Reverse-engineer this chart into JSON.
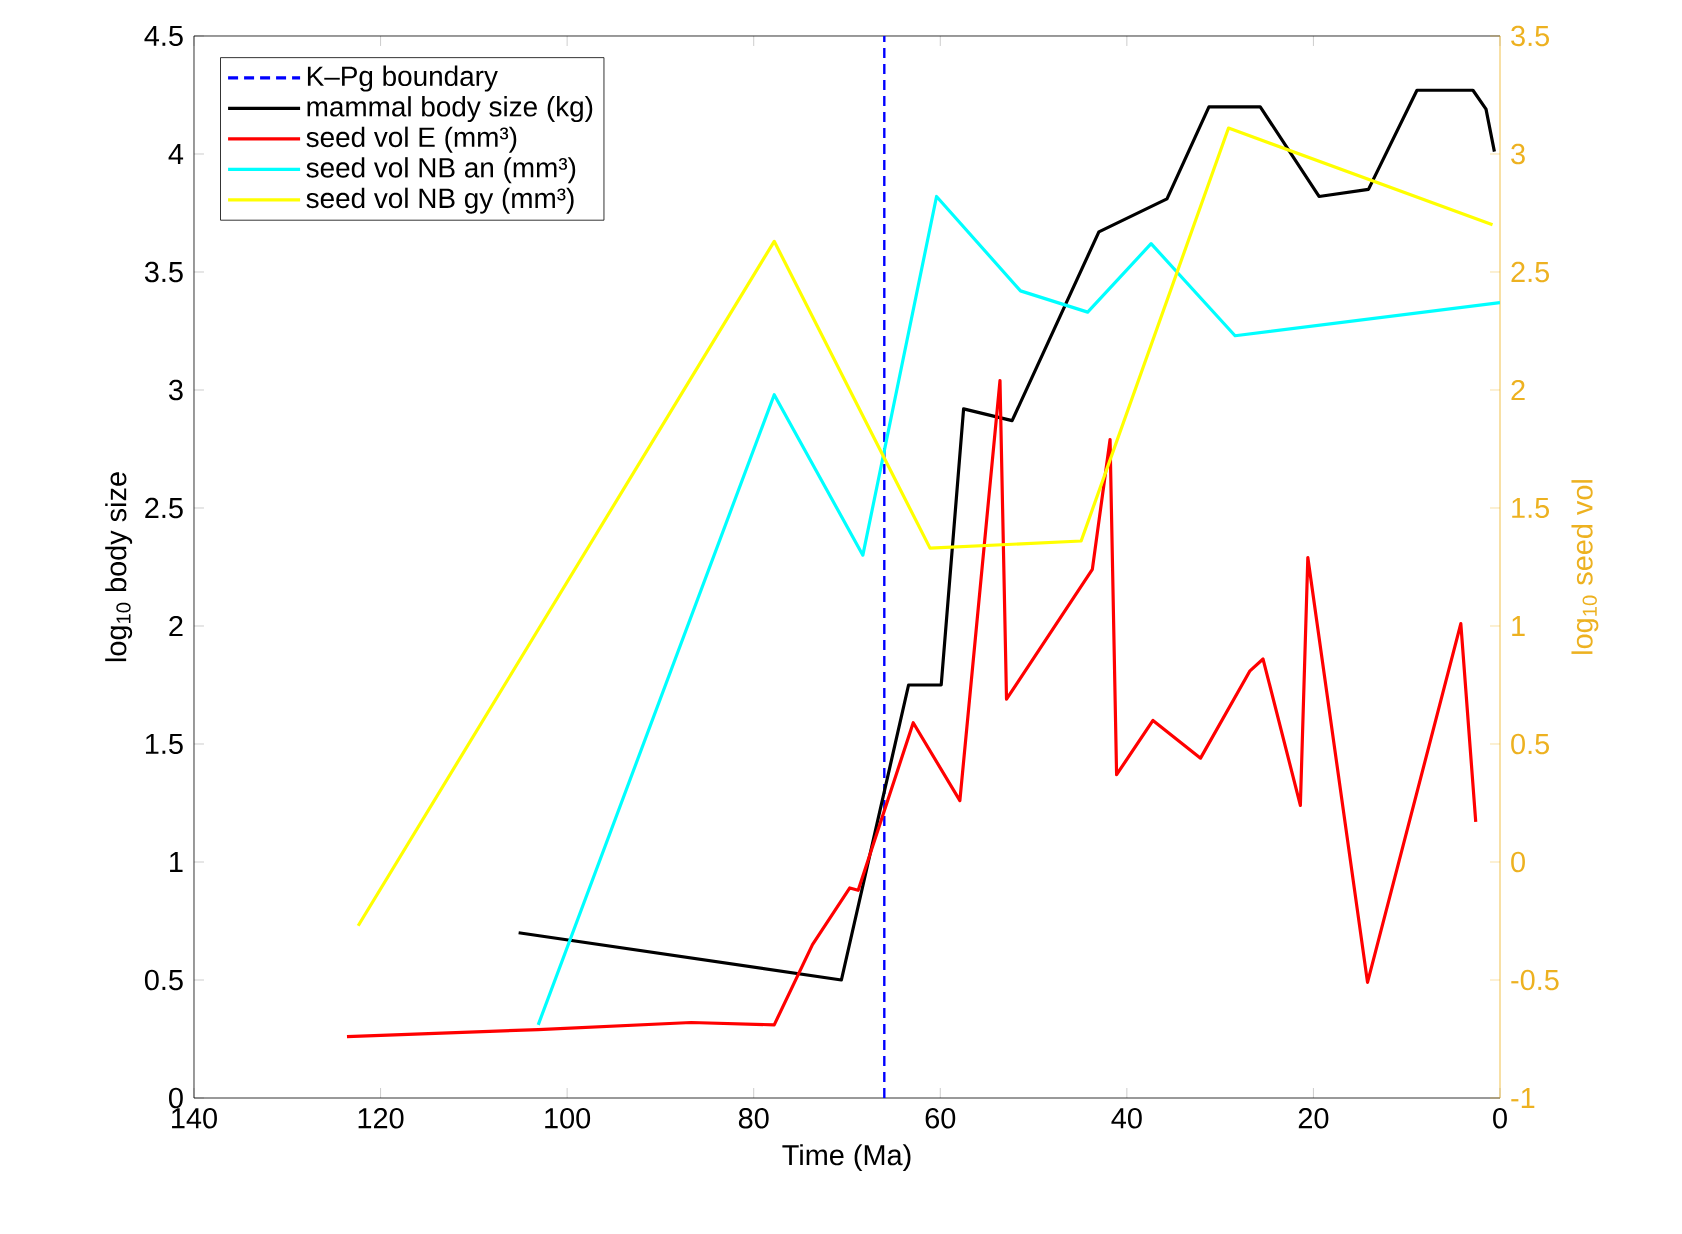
{
  "chart_data": {
    "type": "line",
    "xlabel": "Time (Ma)",
    "ylabel": "log$_{10}$ body size",
    "y2label": "log$_{10}$ seed vol",
    "xlim": [
      140,
      0
    ],
    "xticks": [
      140,
      120,
      100,
      80,
      60,
      40,
      20,
      0
    ],
    "ylim": [
      0,
      4.5
    ],
    "yticks": [
      0,
      0.5,
      1,
      1.5,
      2,
      2.5,
      3,
      3.5,
      4,
      4.5
    ],
    "y2lim": [
      -1,
      3.5
    ],
    "y2ticks": [
      -1,
      -0.5,
      0,
      0.5,
      1,
      1.5,
      2,
      2.5,
      3,
      3.5
    ],
    "legend": "top left",
    "series": [
      {
        "name": "K–Pg boundary",
        "color": "#0000ff",
        "line_style": "dashed",
        "x": [
          66,
          66
        ],
        "values": [
          0,
          4.5
        ]
      },
      {
        "name": "mammal body size (kg)",
        "color": "#000000",
        "x": [
          105.2,
          70.6,
          63.4,
          59.9,
          57.5,
          52.3,
          43,
          35.7,
          31.2,
          25.7,
          19.4,
          14.1,
          8.9,
          2.9,
          1.5,
          0.6
        ],
        "values": [
          0.7,
          0.5,
          1.75,
          1.75,
          2.92,
          2.87,
          3.67,
          3.81,
          4.2,
          4.2,
          3.82,
          3.85,
          4.27,
          4.27,
          4.19,
          4.01
        ]
      },
      {
        "name": "seed vol E (mm³)",
        "color": "#ff0000",
        "axis": "y2",
        "x": [
          123.6,
          103.1,
          86.7,
          77.8,
          73.7,
          69.7,
          68.8,
          62.9,
          57.9,
          53.6,
          52.9,
          43.7,
          41.8,
          41.1,
          37.2,
          32.1,
          26.8,
          25.4,
          21.4,
          20.6,
          14.2,
          4.2,
          2.6
        ],
        "values": [
          -0.74,
          -0.71,
          -0.68,
          -0.69,
          -0.35,
          -0.11,
          -0.12,
          0.59,
          0.26,
          2.04,
          0.69,
          1.24,
          1.79,
          0.37,
          0.6,
          0.44,
          0.81,
          0.86,
          0.24,
          1.29,
          -0.51,
          1.01,
          0.17
        ]
      },
      {
        "name": "seed vol NB an (mm³)",
        "color": "#00ffff",
        "axis": "y2",
        "x": [
          103.1,
          77.8,
          68.3,
          60.4,
          51.4,
          44.2,
          37.4,
          28.4,
          0
        ],
        "values": [
          -0.69,
          1.98,
          1.3,
          2.82,
          2.42,
          2.33,
          2.62,
          2.23,
          2.37
        ]
      },
      {
        "name": "seed vol NB gy (mm³)",
        "color": "#ffff00",
        "axis": "y2",
        "x": [
          122.4,
          77.8,
          61.1,
          44.9,
          29.1,
          0.8
        ],
        "values": [
          -0.27,
          2.63,
          1.33,
          1.36,
          3.11,
          2.7
        ]
      }
    ]
  }
}
